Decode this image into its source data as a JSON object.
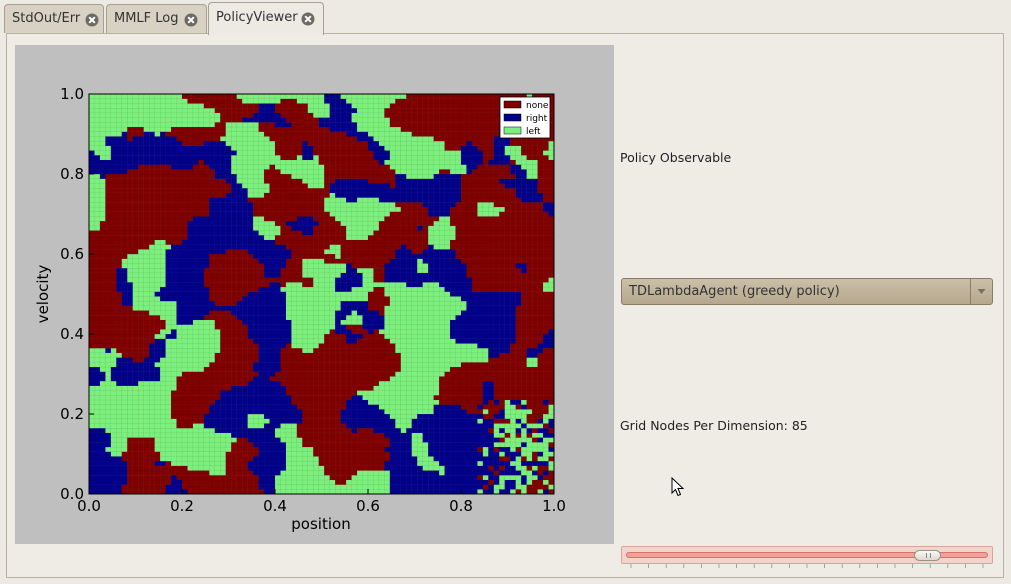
{
  "tabs": [
    {
      "label": "StdOut/Err",
      "active": false
    },
    {
      "label": "MMLF Log",
      "active": false
    },
    {
      "label": "PolicyViewer",
      "active": true
    }
  ],
  "policy_observable_label": "Policy Observable",
  "agent_select": {
    "value": "TDLambdaAgent (greedy policy)"
  },
  "grid_nodes_label": "Grid Nodes Per Dimension: 85",
  "slider": {
    "value": 85
  },
  "colors": {
    "none": "#800000",
    "right": "#00008b",
    "left": "#7cf07c"
  },
  "chart_data": {
    "type": "heatmap",
    "xlabel": "position",
    "ylabel": "velocity",
    "xlim": [
      0.0,
      1.0
    ],
    "ylim": [
      0.0,
      1.0
    ],
    "x_ticks": [
      "0.0",
      "0.2",
      "0.4",
      "0.6",
      "0.8",
      "1.0"
    ],
    "y_ticks": [
      "0.0",
      "0.2",
      "0.4",
      "0.6",
      "0.8",
      "1.0"
    ],
    "legend": [
      "none",
      "right",
      "left"
    ],
    "legend_position": "top-right",
    "grid_nodes": 85
  }
}
